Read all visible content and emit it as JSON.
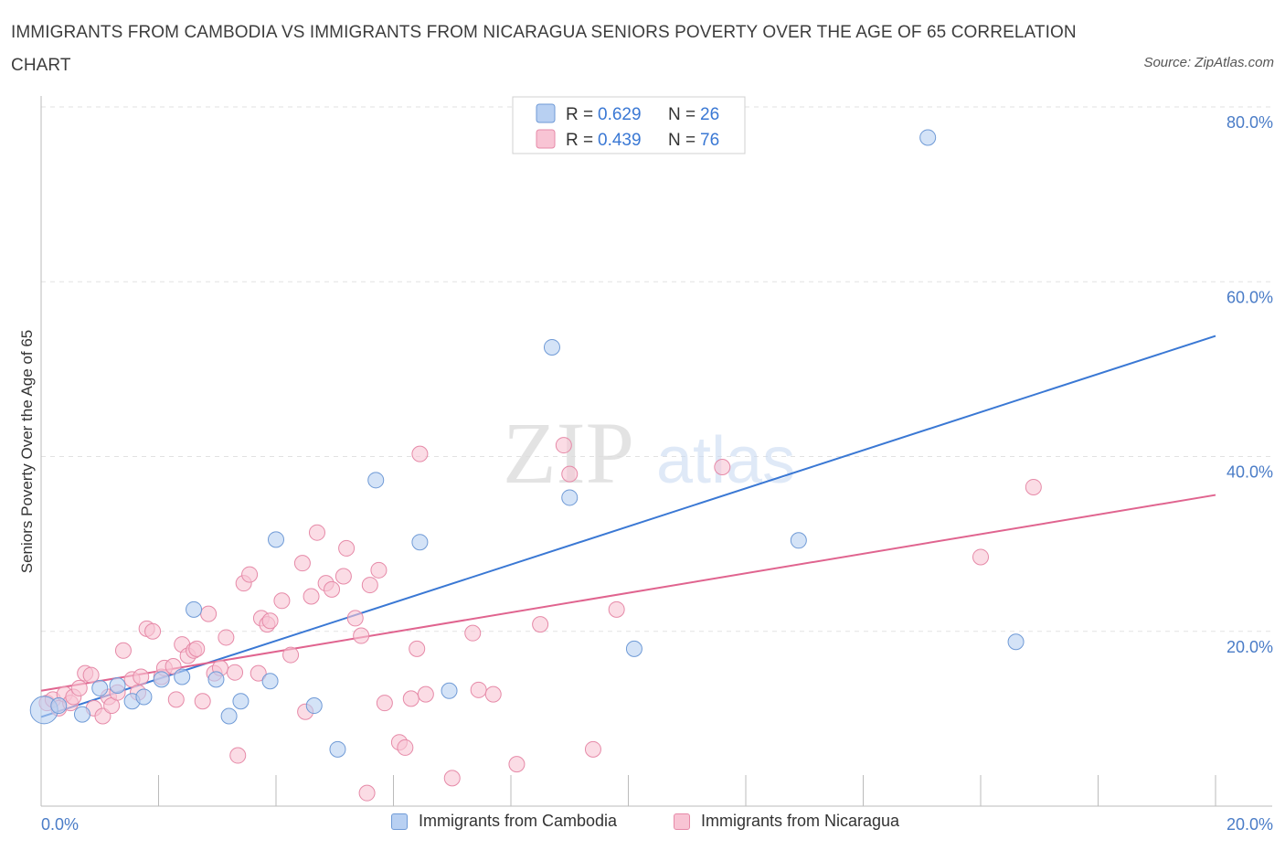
{
  "title": "IMMIGRANTS FROM CAMBODIA VS IMMIGRANTS FROM NICARAGUA SENIORS POVERTY OVER THE AGE OF 65 CORRELATION CHART",
  "source": "Source: ZipAtlas.com",
  "watermark": {
    "zip": "ZIP",
    "atlas": "atlas"
  },
  "colors": {
    "cambodia_fill": "#b8d0f2",
    "cambodia_stroke": "#6f9ad6",
    "cambodia_line": "#3a78d4",
    "nicaragua_fill": "#f8c4d4",
    "nicaragua_stroke": "#e68aa8",
    "nicaragua_line": "#e0648f",
    "tick_blue": "#4a7cc7"
  },
  "legend": {
    "cambodia": {
      "r_label": "R = ",
      "r_value": "0.629",
      "n_label": "N = ",
      "n_value": "26"
    },
    "nicaragua": {
      "r_label": "R = ",
      "r_value": "0.439",
      "n_label": "N = ",
      "n_value": "76"
    }
  },
  "bottom_legend": {
    "cambodia": "Immigrants from Cambodia",
    "nicaragua": "Immigrants from Nicaragua"
  },
  "chart_data": {
    "type": "scatter",
    "title": "IMMIGRANTS FROM CAMBODIA VS IMMIGRANTS FROM NICARAGUA SENIORS POVERTY OVER THE AGE OF 65 CORRELATION CHART",
    "xlabel": "",
    "ylabel": "Seniors Poverty Over the Age of 65",
    "xlim": [
      0,
      20
    ],
    "ylim": [
      0,
      80
    ],
    "x_tick_labels": [
      "0.0%",
      "20.0%"
    ],
    "y_ticks": [
      20,
      40,
      60,
      80
    ],
    "y_tick_labels": [
      "20.0%",
      "40.0%",
      "60.0%",
      "80.0%"
    ],
    "grid": true,
    "series": [
      {
        "name": "Immigrants from Cambodia",
        "r": 0.629,
        "n": 26,
        "trend": {
          "x": [
            0,
            20
          ],
          "y": [
            10.2,
            53.8
          ]
        },
        "points": [
          {
            "x": 0.05,
            "y": 11.0,
            "big": true
          },
          {
            "x": 0.3,
            "y": 11.5
          },
          {
            "x": 0.7,
            "y": 10.5
          },
          {
            "x": 1.0,
            "y": 13.5
          },
          {
            "x": 1.3,
            "y": 13.8
          },
          {
            "x": 1.55,
            "y": 12.0
          },
          {
            "x": 1.75,
            "y": 12.5
          },
          {
            "x": 2.05,
            "y": 14.5
          },
          {
            "x": 2.4,
            "y": 14.8
          },
          {
            "x": 2.6,
            "y": 22.5
          },
          {
            "x": 2.98,
            "y": 14.5
          },
          {
            "x": 3.2,
            "y": 10.3
          },
          {
            "x": 3.4,
            "y": 12.0
          },
          {
            "x": 3.9,
            "y": 14.3
          },
          {
            "x": 4.0,
            "y": 30.5
          },
          {
            "x": 4.65,
            "y": 11.5
          },
          {
            "x": 5.05,
            "y": 6.5
          },
          {
            "x": 5.7,
            "y": 37.3
          },
          {
            "x": 6.45,
            "y": 30.2
          },
          {
            "x": 6.95,
            "y": 13.2
          },
          {
            "x": 8.7,
            "y": 52.5
          },
          {
            "x": 9.0,
            "y": 35.3
          },
          {
            "x": 10.1,
            "y": 18.0
          },
          {
            "x": 12.9,
            "y": 30.4
          },
          {
            "x": 15.1,
            "y": 76.5
          },
          {
            "x": 16.6,
            "y": 18.8
          }
        ]
      },
      {
        "name": "Immigrants from Nicaragua",
        "r": 0.439,
        "n": 76,
        "trend": {
          "x": [
            0,
            20
          ],
          "y": [
            13.2,
            35.6
          ]
        },
        "points": [
          {
            "x": 0.1,
            "y": 11.8
          },
          {
            "x": 0.2,
            "y": 12.2
          },
          {
            "x": 0.3,
            "y": 11.2
          },
          {
            "x": 0.4,
            "y": 12.8
          },
          {
            "x": 0.5,
            "y": 11.8
          },
          {
            "x": 0.55,
            "y": 12.5
          },
          {
            "x": 0.65,
            "y": 13.5
          },
          {
            "x": 0.75,
            "y": 15.2
          },
          {
            "x": 0.85,
            "y": 15.0
          },
          {
            "x": 0.9,
            "y": 11.2
          },
          {
            "x": 1.05,
            "y": 10.3
          },
          {
            "x": 1.15,
            "y": 12.5
          },
          {
            "x": 1.2,
            "y": 11.5
          },
          {
            "x": 1.3,
            "y": 13.0
          },
          {
            "x": 1.4,
            "y": 17.8
          },
          {
            "x": 1.55,
            "y": 14.5
          },
          {
            "x": 1.65,
            "y": 13.0
          },
          {
            "x": 1.7,
            "y": 14.8
          },
          {
            "x": 1.8,
            "y": 20.3
          },
          {
            "x": 1.9,
            "y": 20.0
          },
          {
            "x": 2.05,
            "y": 14.8
          },
          {
            "x": 2.1,
            "y": 15.8
          },
          {
            "x": 2.25,
            "y": 16.0
          },
          {
            "x": 2.3,
            "y": 12.2
          },
          {
            "x": 2.4,
            "y": 18.5
          },
          {
            "x": 2.5,
            "y": 17.2
          },
          {
            "x": 2.6,
            "y": 17.8
          },
          {
            "x": 2.65,
            "y": 18.0
          },
          {
            "x": 2.75,
            "y": 12.0
          },
          {
            "x": 2.85,
            "y": 22.0
          },
          {
            "x": 2.95,
            "y": 15.2
          },
          {
            "x": 3.05,
            "y": 15.8
          },
          {
            "x": 3.15,
            "y": 19.3
          },
          {
            "x": 3.3,
            "y": 15.3
          },
          {
            "x": 3.35,
            "y": 5.8
          },
          {
            "x": 3.45,
            "y": 25.5
          },
          {
            "x": 3.55,
            "y": 26.5
          },
          {
            "x": 3.7,
            "y": 15.2
          },
          {
            "x": 3.75,
            "y": 21.5
          },
          {
            "x": 3.85,
            "y": 20.8
          },
          {
            "x": 3.9,
            "y": 21.2
          },
          {
            "x": 4.1,
            "y": 23.5
          },
          {
            "x": 4.25,
            "y": 17.3
          },
          {
            "x": 4.45,
            "y": 27.8
          },
          {
            "x": 4.5,
            "y": 10.8
          },
          {
            "x": 4.6,
            "y": 24.0
          },
          {
            "x": 4.7,
            "y": 31.3
          },
          {
            "x": 4.85,
            "y": 25.5
          },
          {
            "x": 4.95,
            "y": 24.8
          },
          {
            "x": 5.15,
            "y": 26.3
          },
          {
            "x": 5.2,
            "y": 29.5
          },
          {
            "x": 5.35,
            "y": 21.5
          },
          {
            "x": 5.45,
            "y": 19.5
          },
          {
            "x": 5.55,
            "y": 1.5
          },
          {
            "x": 5.6,
            "y": 25.3
          },
          {
            "x": 5.75,
            "y": 27.0
          },
          {
            "x": 5.85,
            "y": 11.8
          },
          {
            "x": 6.1,
            "y": 7.3
          },
          {
            "x": 6.2,
            "y": 6.7
          },
          {
            "x": 6.3,
            "y": 12.3
          },
          {
            "x": 6.4,
            "y": 18.0
          },
          {
            "x": 6.45,
            "y": 40.3
          },
          {
            "x": 6.55,
            "y": 12.8
          },
          {
            "x": 7.0,
            "y": 3.2
          },
          {
            "x": 7.35,
            "y": 19.8
          },
          {
            "x": 7.45,
            "y": 13.3
          },
          {
            "x": 7.7,
            "y": 12.8
          },
          {
            "x": 8.1,
            "y": 4.8
          },
          {
            "x": 8.5,
            "y": 20.8
          },
          {
            "x": 8.9,
            "y": 41.3
          },
          {
            "x": 9.0,
            "y": 38.0
          },
          {
            "x": 9.4,
            "y": 6.5
          },
          {
            "x": 9.8,
            "y": 22.5
          },
          {
            "x": 11.6,
            "y": 38.8
          },
          {
            "x": 16.0,
            "y": 28.5
          },
          {
            "x": 16.9,
            "y": 36.5
          }
        ]
      }
    ]
  }
}
